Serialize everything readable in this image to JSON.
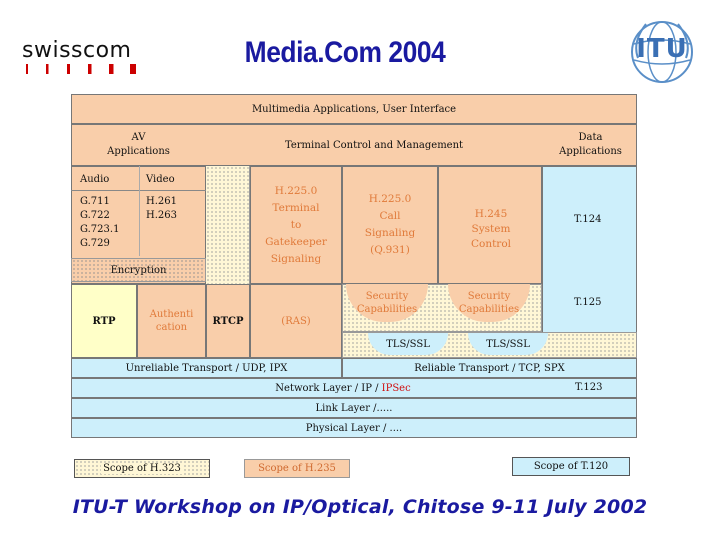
{
  "header": {
    "company_logo": "swisscom",
    "title": "Media.Com 2004",
    "itu_logo_text": "ITU"
  },
  "diagram": {
    "multimedia": "Multimedia Applications, User Interface",
    "av_applications": "AV\nApplications",
    "terminal_control": "Terminal Control and Management",
    "data_applications": "Data\nApplications",
    "audio": "Audio",
    "video": "Video",
    "audio_codecs": "G.711\nG.722\nG.723.1\nG.729",
    "video_codecs": "H.261\nH.263",
    "h2250_gatekeeper": "H.225.0\nTerminal\nto\nGatekeeper\nSignaling",
    "h2250_call": "H.225.0\nCall\nSignaling\n(Q.931)",
    "h245": "H.245\nSystem\nControl",
    "t124": "T.124",
    "encryption": "Encryption",
    "rtp": "RTP",
    "authentication": "Authenti\ncation",
    "rtcp": "RTCP",
    "ras": "(RAS)",
    "security1": "Security\nCapabilities",
    "security2": "Security\nCapabilities",
    "t125": "T.125",
    "tls1": "TLS/SSL",
    "tls2": "TLS/SSL",
    "udp": "Unreliable Transport / UDP, IPX",
    "tcp": "Reliable Transport / TCP, SPX",
    "network_prefix": "Network Layer / IP / ",
    "ipsec": "IPSec",
    "t123": "T.123",
    "link": "Link Layer /.....",
    "physical": "Physical Layer / ....",
    "scope_h323": "Scope of H.323",
    "scope_h235": "Scope of H.235",
    "scope_t120": "Scope of T.120"
  },
  "footer": "ITU-T Workshop on IP/Optical, Chitose 9-11 July 2002",
  "colors": {
    "title": "#1a1aa0",
    "peach": "#f9ceaa",
    "lightblue": "#cdeffb",
    "lightyellow": "#ffffc8",
    "ipsec": "#d01010"
  }
}
